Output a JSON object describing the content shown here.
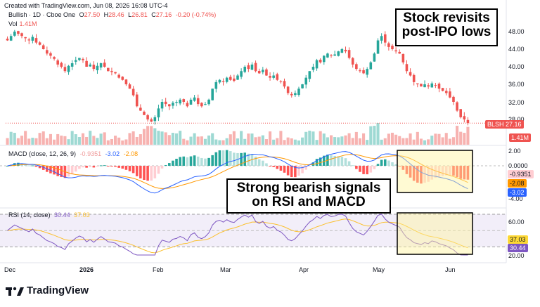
{
  "header": {
    "text": "Created with TradingView.com, Jun 08, 2026 16:08 UTC-4"
  },
  "legend": {
    "symbol": "Bullish · 1D · Cboe One",
    "open_label": "O",
    "open": "27.50",
    "high_label": "H",
    "high": "28.46",
    "low_label": "L",
    "low": "26.81",
    "close_label": "C",
    "close": "27.16",
    "change": "-0.20 (-0.74%)",
    "vol_label": "Vol",
    "vol": "1.41M"
  },
  "macd_legend": {
    "label": "MACD (close, 12, 26, 9)",
    "hist": "-0.9351",
    "macd": "-3.02",
    "signal": "-2.08"
  },
  "rsi_legend": {
    "label": "RSI (14, close)",
    "rsi": "30.44",
    "ma": "37.03"
  },
  "price_axis": {
    "ticks": [
      "48.00",
      "44.00",
      "40.00",
      "36.00",
      "32.00",
      "28.00"
    ]
  },
  "macd_axis": {
    "ticks": [
      "2.00",
      "0.0000",
      "-4.00"
    ]
  },
  "rsi_axis": {
    "ticks": [
      "60.00",
      "20.00"
    ]
  },
  "badges": {
    "ticker": "BLSH",
    "last_price": "27.16",
    "volume": "1.41M",
    "macd_hist": "-0.9351",
    "macd_signal": "-2.08",
    "macd_line": "-3.02",
    "rsi_ma": "37.03",
    "rsi": "30.44"
  },
  "time_axis": {
    "labels": [
      "Dec",
      "2026",
      "Feb",
      "Mar",
      "Apr",
      "May",
      "Jun"
    ]
  },
  "callouts": {
    "top": "Stock revisits post-IPO lows",
    "middle": "Strong bearish signals on RSI and MACD"
  },
  "brand": {
    "name": "TradingView"
  },
  "colors": {
    "up": "#26a69a",
    "down": "#ef5350",
    "macd": "#2962ff",
    "signal": "#ff9800",
    "rsi": "#7e57c2",
    "highlight": "#fff59d"
  },
  "chart_data": {
    "type": "candlestick",
    "title": "Bullish · 1D · Cboe One",
    "x_range": [
      "2025-11-28",
      "2026-06-08"
    ],
    "ylim": [
      26,
      50
    ],
    "price_path": [
      46,
      47,
      48,
      47.5,
      47,
      46.5,
      46,
      46.8,
      45.5,
      45,
      44,
      43,
      42.5,
      41.8,
      40.5,
      40,
      39,
      40.2,
      40.8,
      41.5,
      42,
      41.5,
      40,
      40.5,
      39.5,
      40.2,
      40.8,
      40,
      39,
      38.8,
      38.5,
      37.5,
      37,
      36,
      35,
      33.5,
      31,
      30,
      29,
      28,
      27.5,
      28.5,
      30.5,
      32,
      31.5,
      31,
      31.8,
      32,
      32.5,
      32,
      31,
      32.5,
      33,
      31.5,
      31,
      31.5,
      32.5,
      35,
      36.5,
      37,
      36.5,
      37.5,
      37,
      36.8,
      38,
      39,
      40,
      39.5,
      40.5,
      39,
      38.5,
      39.3,
      38,
      37.5,
      38,
      37,
      36.5,
      35.5,
      34,
      33.5,
      34,
      35,
      36,
      37.5,
      39,
      40,
      41.5,
      41,
      42.5,
      43,
      42.5,
      42.8,
      43.5,
      44,
      43.5,
      42,
      40.5,
      39.5,
      39,
      38.5,
      39.5,
      41,
      43,
      46,
      47,
      45.5,
      44.5,
      44,
      43.5,
      43,
      41,
      39,
      38,
      36.5,
      36,
      35.5,
      36,
      35.5,
      36.2,
      35.8,
      35,
      34.5,
      34,
      33,
      32,
      30,
      28.5,
      28,
      27.16
    ],
    "volume_millions_scale": "relative",
    "macd": {
      "last_hist": -0.9351,
      "last_macd": -3.02,
      "last_signal": -2.08,
      "ylim": [
        -4.5,
        2.5
      ]
    },
    "rsi": {
      "last_rsi": 30.44,
      "last_ma": 37.03,
      "bands": [
        30,
        70
      ],
      "ylim": [
        20,
        70
      ]
    }
  }
}
